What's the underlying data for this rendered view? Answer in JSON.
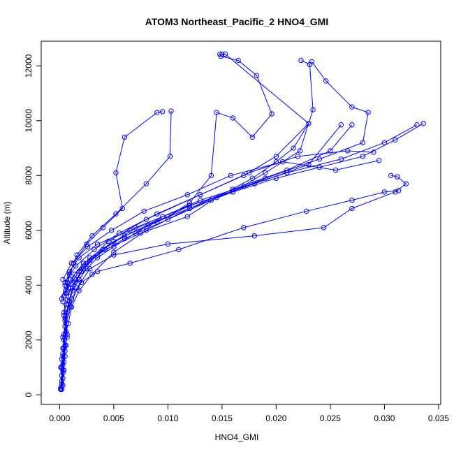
{
  "chart_data": {
    "type": "line",
    "title": "ATOM3 Northeast_Pacific_2 HNO4_GMI",
    "xlabel": "HNO4_GMI",
    "ylabel": "Altitude (m)",
    "xlim": [
      -0.0017,
      0.0352
    ],
    "ylim": [
      -350,
      12900
    ],
    "x_ticks": [
      0.0,
      0.005,
      0.01,
      0.015,
      0.02,
      0.025,
      0.03,
      0.035
    ],
    "x_tick_labels": [
      "0.000",
      "0.005",
      "0.010",
      "0.015",
      "0.020",
      "0.025",
      "0.030",
      "0.035"
    ],
    "y_ticks": [
      0,
      2000,
      4000,
      6000,
      8000,
      10000,
      12000
    ],
    "y_tick_labels": [
      "0",
      "2000",
      "4000",
      "6000",
      "8000",
      "10000",
      "12000"
    ],
    "series_color": "#0000ff",
    "marker": "open-circle",
    "series": [
      {
        "x": [
          0.0001,
          0.0002,
          0.0003,
          0.0002,
          0.0004,
          0.0003,
          0.0005,
          0.0004,
          0.0006,
          0.0008,
          0.001,
          0.0015,
          0.002,
          0.0028,
          0.004,
          0.006,
          0.009,
          0.012,
          0.016,
          0.02,
          0.024,
          0.028,
          0.031,
          0.0336
        ],
        "y": [
          200,
          500,
          900,
          1300,
          1700,
          2100,
          2500,
          2900,
          3300,
          3600,
          3900,
          4200,
          4500,
          4900,
          5300,
          5800,
          6300,
          6900,
          7400,
          7900,
          8300,
          8700,
          9300,
          9900
        ]
      },
      {
        "x": [
          0.0002,
          0.0003,
          0.0001,
          0.0003,
          0.0005,
          0.0004,
          0.0006,
          0.0007,
          0.0009,
          0.0012,
          0.0018,
          0.0025,
          0.0035,
          0.005,
          0.007,
          0.0095,
          0.013,
          0.017,
          0.021,
          0.026,
          0.03,
          0.033
        ],
        "y": [
          200,
          600,
          1000,
          1400,
          1800,
          2200,
          2600,
          3000,
          3400,
          3800,
          4200,
          4600,
          5000,
          5400,
          5900,
          6500,
          7100,
          7600,
          8100,
          8600,
          9200,
          9850
        ]
      },
      {
        "x": [
          0.0001,
          0.0002,
          0.0004,
          0.0003,
          0.0006,
          0.0005,
          0.0008,
          0.0012,
          0.0022,
          0.004,
          0.007,
          0.012,
          0.018,
          0.023,
          0.026
        ],
        "y": [
          250,
          700,
          1200,
          1700,
          2300,
          2800,
          3300,
          3900,
          4600,
          5300,
          6100,
          6900,
          7700,
          8400,
          9850
        ]
      },
      {
        "x": [
          0.0002,
          0.0004,
          0.0003,
          0.0007,
          0.0005,
          0.0009,
          0.0014,
          0.0025,
          0.0045,
          0.008,
          0.013,
          0.017,
          0.02,
          0.023
        ],
        "y": [
          300,
          900,
          1500,
          2100,
          2700,
          3400,
          4100,
          4800,
          5600,
          6400,
          7300,
          8000,
          8700,
          9900
        ]
      },
      {
        "x": [
          0.0001,
          0.0003,
          0.0005,
          0.0004,
          0.0008,
          0.0011,
          0.0018,
          0.003,
          0.005,
          0.008,
          0.012,
          0.016,
          0.021,
          0.025,
          0.027
        ],
        "y": [
          200,
          800,
          1400,
          2000,
          2600,
          3200,
          3800,
          4400,
          5200,
          6000,
          6800,
          7500,
          8200,
          8900,
          9850
        ]
      },
      {
        "x": [
          0.0002,
          0.0003,
          0.0006,
          0.0005,
          0.001,
          0.0016,
          0.0028,
          0.005,
          0.01,
          0.018,
          0.0244,
          0.027,
          0.031,
          0.032,
          0.0312,
          0.0306
        ],
        "y": [
          400,
          1100,
          1800,
          2500,
          3200,
          3900,
          4600,
          5100,
          5500,
          5800,
          6100,
          6800,
          7400,
          7700,
          7950,
          8000
        ]
      },
      {
        "x": [
          0.0003,
          0.0002,
          0.0005,
          0.0007,
          0.0006,
          0.0011,
          0.002,
          0.0035,
          0.0065,
          0.011,
          0.017,
          0.0228,
          0.027,
          0.03,
          0.0313
        ],
        "y": [
          350,
          1000,
          1600,
          2200,
          2900,
          3500,
          4100,
          4500,
          4800,
          5300,
          6100,
          6700,
          7100,
          7400,
          7450
        ]
      },
      {
        "x": [
          0.0004,
          0.0006,
          0.0009,
          0.0016,
          0.003,
          0.0052,
          0.008,
          0.0102,
          0.0103
        ],
        "y": [
          3000,
          3700,
          4400,
          5100,
          5800,
          6600,
          7700,
          8700,
          10350
        ]
      },
      {
        "x": [
          0.0003,
          0.0007,
          0.0013,
          0.0025,
          0.004,
          0.0058,
          0.0052,
          0.006,
          0.009,
          0.0095
        ],
        "y": [
          3400,
          4100,
          4800,
          5500,
          6100,
          6800,
          8100,
          9400,
          10300,
          10330
        ]
      },
      {
        "x": [
          0.0002,
          0.0005,
          0.0009,
          0.0018,
          0.0035,
          0.0065,
          0.01,
          0.012,
          0.014,
          0.0145,
          0.016,
          0.0178,
          0.0196,
          0.0182,
          0.0165,
          0.0149,
          0.0148
        ],
        "y": [
          3500,
          4000,
          4500,
          5000,
          5500,
          6000,
          6500,
          7000,
          8000,
          10300,
          10100,
          9400,
          10250,
          11650,
          12200,
          12350,
          12430
        ]
      },
      {
        "x": [
          0.0004,
          0.001,
          0.0022,
          0.0042,
          0.0075,
          0.0118,
          0.0145,
          0.0178,
          0.02,
          0.0216,
          0.023,
          0.0153,
          0.015
        ],
        "y": [
          3600,
          4200,
          4800,
          5300,
          5900,
          6500,
          7200,
          7900,
          8500,
          9000,
          9900,
          12430,
          12430
        ]
      },
      {
        "x": [
          0.0006,
          0.0014,
          0.0028,
          0.005,
          0.0082,
          0.012,
          0.016,
          0.019,
          0.0222,
          0.0234,
          0.0231,
          0.0223
        ],
        "y": [
          3800,
          4400,
          5000,
          5600,
          6200,
          6800,
          7400,
          8100,
          8900,
          10400,
          12050,
          12200
        ]
      },
      {
        "x": [
          0.0008,
          0.0018,
          0.0035,
          0.006,
          0.01,
          0.014,
          0.019,
          0.024,
          0.028,
          0.0285,
          0.027,
          0.0246,
          0.0233
        ],
        "y": [
          3900,
          4500,
          5100,
          5700,
          6400,
          7100,
          7900,
          8600,
          9200,
          10300,
          10500,
          11450,
          12150
        ]
      },
      {
        "x": [
          0.0005,
          0.0015,
          0.0032,
          0.0055,
          0.009,
          0.013,
          0.0175,
          0.022,
          0.0266,
          0.029
        ],
        "y": [
          4100,
          4700,
          5300,
          5900,
          6600,
          7300,
          8100,
          8700,
          8900,
          8850
        ]
      },
      {
        "x": [
          0.0003,
          0.0011,
          0.0026,
          0.0048,
          0.0078,
          0.0118,
          0.0158,
          0.0206,
          0.0255,
          0.0295
        ],
        "y": [
          4200,
          4800,
          5400,
          6000,
          6700,
          7300,
          8000,
          8500,
          8200,
          8550
        ]
      }
    ]
  }
}
